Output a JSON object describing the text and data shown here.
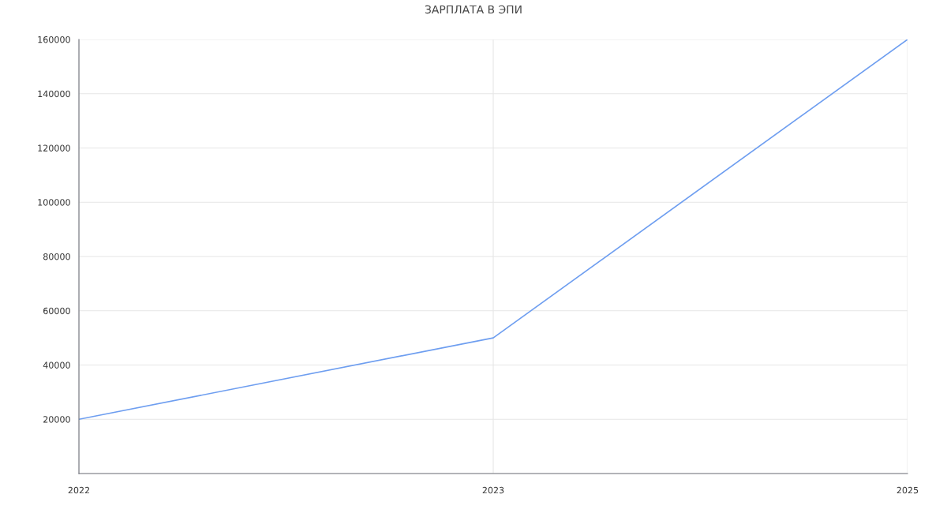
{
  "chart_data": {
    "type": "line",
    "title": "ЗАРПЛАТА В ЭПИ",
    "categories": [
      "2022",
      "2023",
      "2025"
    ],
    "series": [
      {
        "color": "#6e9ef0",
        "values": [
          20000,
          50000,
          160000
        ]
      }
    ],
    "ylim": [
      0,
      160000
    ],
    "yticks": [
      {
        "value": 0,
        "label": null
      },
      20000,
      40000,
      60000,
      80000,
      100000,
      120000,
      140000,
      160000
    ],
    "grid": true,
    "marker": "none",
    "line_style": "solid"
  }
}
